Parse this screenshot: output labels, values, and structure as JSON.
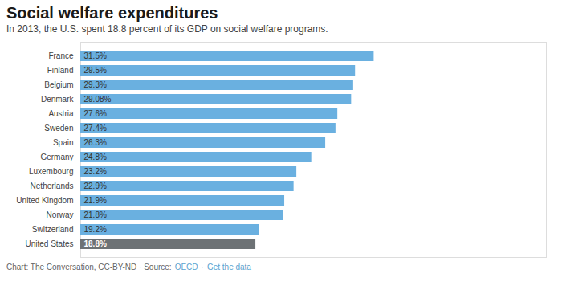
{
  "chart_data": {
    "type": "bar",
    "orientation": "horizontal",
    "title": "Social welfare expenditures",
    "subtitle": "In 2013, the U.S. spent 18.8 percent of its GDP on social welfare programs.",
    "categories": [
      "France",
      "Finland",
      "Belgium",
      "Denmark",
      "Austria",
      "Sweden",
      "Spain",
      "Germany",
      "Luxembourg",
      "Netherlands",
      "United Kingdom",
      "Norway",
      "Switzerland",
      "United States"
    ],
    "values": [
      31.5,
      29.5,
      29.3,
      29.08,
      27.6,
      27.4,
      26.3,
      24.8,
      23.2,
      22.9,
      21.9,
      21.8,
      19.2,
      18.8
    ],
    "value_labels": [
      "31.5%",
      "29.5%",
      "29.3%",
      "29.08%",
      "27.6%",
      "27.4%",
      "26.3%",
      "24.8%",
      "23.2%",
      "22.9%",
      "21.9%",
      "21.8%",
      "19.2%",
      "18.8%"
    ],
    "colors": [
      "#6ab0e0",
      "#6ab0e0",
      "#6ab0e0",
      "#6ab0e0",
      "#6ab0e0",
      "#6ab0e0",
      "#6ab0e0",
      "#6ab0e0",
      "#6ab0e0",
      "#6ab0e0",
      "#6ab0e0",
      "#6ab0e0",
      "#6ab0e0",
      "#6d7275"
    ],
    "xlim": [
      0,
      50
    ],
    "data_labels": true,
    "tick_labels": "y",
    "grid": false,
    "annotations": [
      {
        "text": "Chart: The Conversation, CC-BY-ND · Source:",
        "color": "#666666"
      },
      {
        "text": "OECD",
        "color": "#5ba3d0"
      },
      {
        "text": "·",
        "color": "#666666"
      },
      {
        "text": "Get the data",
        "color": "#5ba3d0"
      }
    ]
  }
}
